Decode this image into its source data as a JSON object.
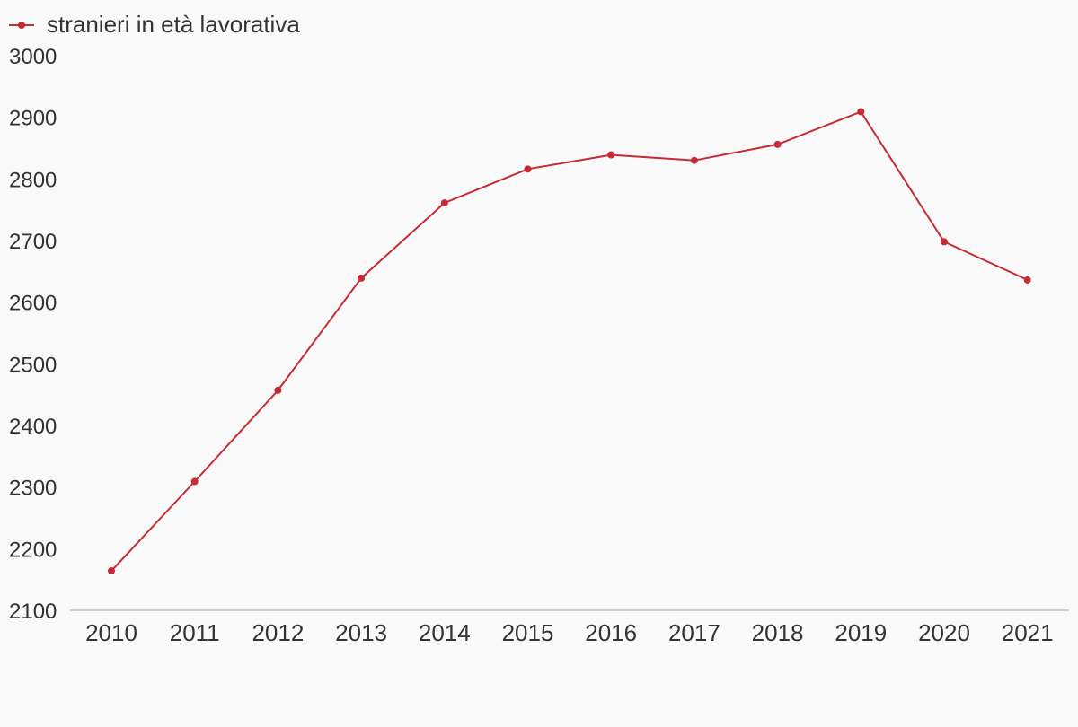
{
  "chart_data": {
    "type": "line",
    "title": "",
    "xlabel": "",
    "ylabel": "",
    "categories": [
      "2010",
      "2011",
      "2012",
      "2013",
      "2014",
      "2015",
      "2016",
      "2017",
      "2018",
      "2019",
      "2020",
      "2021"
    ],
    "series": [
      {
        "name": "stranieri in età lavorativa",
        "color": "#c62b35",
        "values": [
          2164,
          2309,
          2457,
          2639,
          2761,
          2816,
          2839,
          2830,
          2856,
          2909,
          2698,
          2636
        ]
      }
    ],
    "ylim": [
      2100,
      3000
    ],
    "yticks": [
      "3000",
      "2900",
      "2800",
      "2700",
      "2600",
      "2500",
      "2400",
      "2300",
      "2200",
      "2100"
    ],
    "grid": false,
    "legend_position": "top-left",
    "colors": {
      "background": "#f9f9f9",
      "axis": "#cccccc",
      "text": "#333333"
    }
  }
}
